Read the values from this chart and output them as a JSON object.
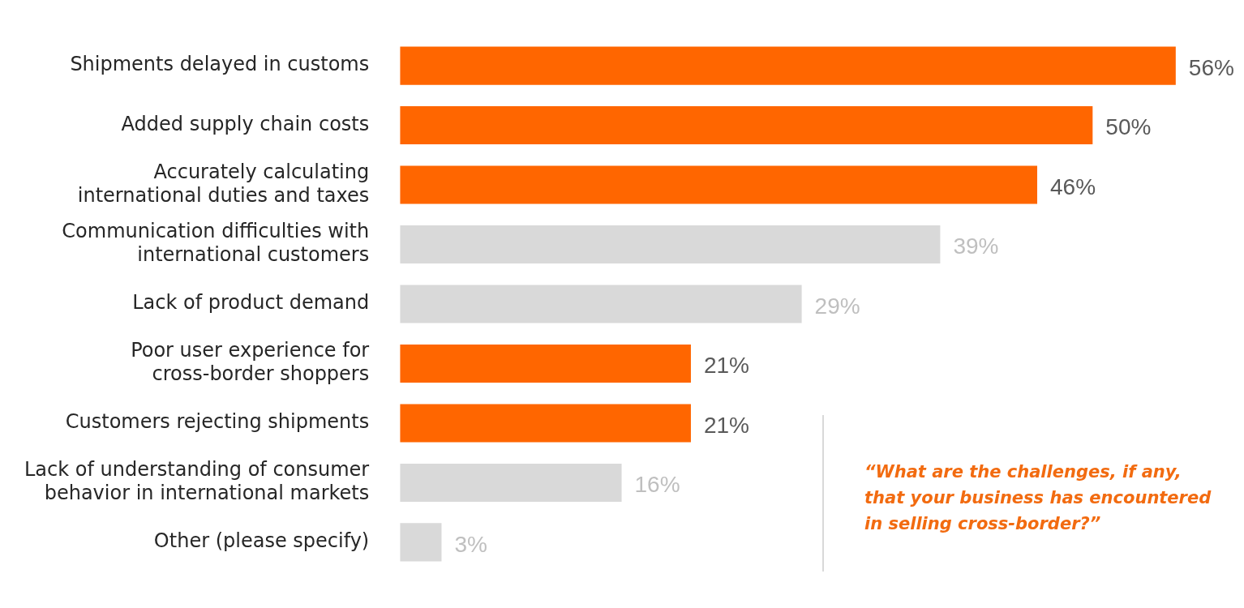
{
  "chart_data": {
    "type": "bar",
    "orientation": "horizontal",
    "categories": [
      "Shipments delayed in customs",
      "Added supply chain costs",
      "Accurately calculating\ninternational duties and taxes",
      "Communication difficulties with\ninternational customers",
      "Lack of product demand",
      "Poor user experience for\ncross-border shoppers",
      "Customers rejecting shipments",
      "Lack of understanding of consumer\nbehavior in international markets",
      "Other (please specify)"
    ],
    "values": [
      56,
      50,
      46,
      39,
      29,
      21,
      21,
      16,
      3
    ],
    "colors": [
      "#ff6600",
      "#ff6600",
      "#ff6600",
      "#d9d9d9",
      "#d9d9d9",
      "#ff6600",
      "#ff6600",
      "#d9d9d9",
      "#d9d9d9"
    ],
    "value_labels": [
      "56%",
      "50%",
      "46%",
      "39%",
      "29%",
      "21%",
      "21%",
      "16%",
      "3%"
    ],
    "tick_labels": "y",
    "legend": false,
    "annotations": [
      "“What are the challenges, if any, that your business has encountered in selling cross-border?”"
    ]
  }
}
